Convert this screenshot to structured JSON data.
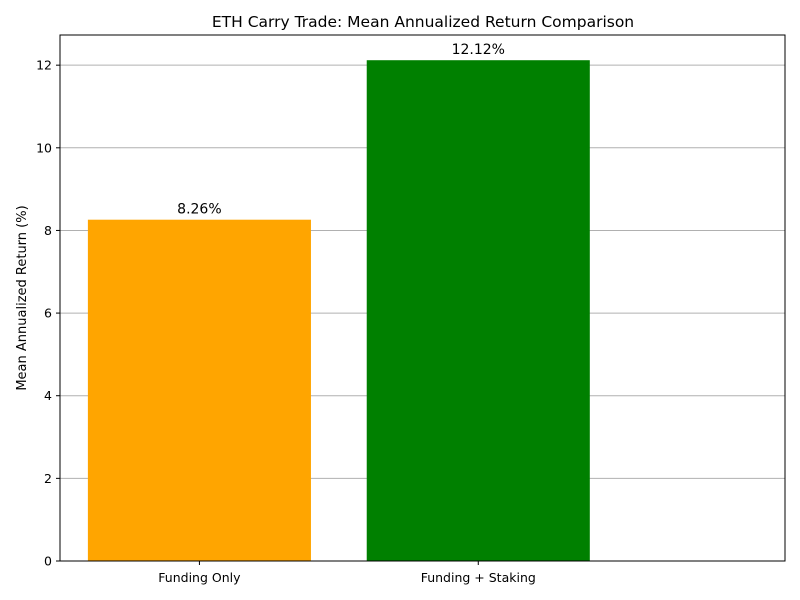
{
  "chart_data": {
    "type": "bar",
    "title": "ETH Carry Trade: Mean Annualized Return Comparison",
    "xlabel": "",
    "ylabel": "Mean Annualized Return (%)",
    "categories": [
      "Funding Only",
      "Funding + Staking"
    ],
    "values": [
      8.26,
      12.12
    ],
    "data_labels": [
      "8.26%",
      "12.12%"
    ],
    "colors": [
      "#ffa500",
      "#008000"
    ],
    "ylim": [
      0,
      12.73
    ],
    "yticks": [
      0,
      2,
      4,
      6,
      8,
      10,
      12
    ],
    "ytick_labels": [
      "0",
      "2",
      "4",
      "6",
      "8",
      "10",
      "12"
    ],
    "grid": "horizontal"
  }
}
